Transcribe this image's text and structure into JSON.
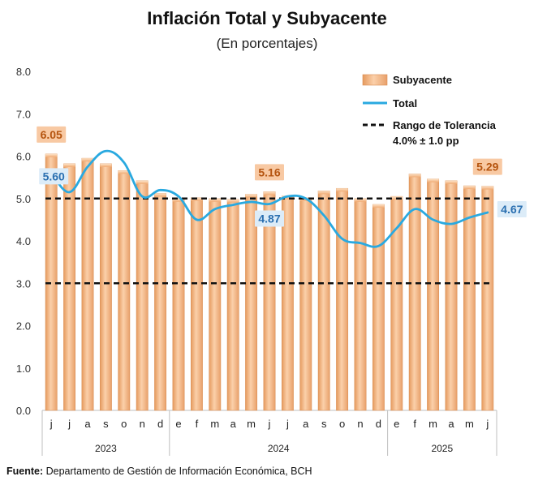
{
  "title": "Inflación Total y Subyacente",
  "subtitle": "(En porcentajes)",
  "source": {
    "label": "Fuente:",
    "text": "Departamento de Gestión de Información Económica, BCH"
  },
  "colors": {
    "bar": "#f3b482",
    "bar_edge": "#d98c50",
    "line": "#29a9e0",
    "band": "#111111",
    "callout_sub_bg": "#f8c9a3",
    "callout_sub_text": "#b5540f",
    "callout_total_bg": "#dcecf8",
    "callout_total_text": "#2a6fb0"
  },
  "chart_data": {
    "type": "bar",
    "ylim": [
      0,
      8
    ],
    "yticks": [
      "0.0",
      "1.0",
      "2.0",
      "3.0",
      "4.0",
      "5.0",
      "6.0",
      "7.0",
      "8.0"
    ],
    "categories": [
      "j",
      "j",
      "a",
      "s",
      "o",
      "n",
      "d",
      "e",
      "f",
      "m",
      "a",
      "m",
      "j",
      "j",
      "a",
      "s",
      "o",
      "n",
      "d",
      "e",
      "f",
      "m",
      "a",
      "m",
      "j"
    ],
    "years": [
      {
        "label": "2023",
        "start": 0,
        "end": 6
      },
      {
        "label": "2024",
        "start": 7,
        "end": 18
      },
      {
        "label": "2025",
        "start": 19,
        "end": 24
      }
    ],
    "series": [
      {
        "name": "Subyacente",
        "type": "bar",
        "values": [
          6.05,
          5.82,
          5.95,
          5.82,
          5.66,
          5.42,
          5.12,
          5.0,
          5.02,
          5.0,
          4.98,
          5.1,
          5.16,
          5.06,
          5.02,
          5.18,
          5.24,
          5.0,
          4.86,
          5.05,
          5.58,
          5.46,
          5.42,
          5.3,
          5.29
        ]
      },
      {
        "name": "Total",
        "type": "line",
        "values": [
          5.6,
          5.15,
          5.75,
          6.12,
          5.85,
          5.05,
          5.2,
          5.05,
          4.5,
          4.75,
          4.85,
          4.92,
          4.87,
          5.05,
          5.0,
          4.6,
          4.05,
          3.95,
          3.88,
          4.3,
          4.75,
          4.5,
          4.4,
          4.55,
          4.67
        ]
      }
    ],
    "tolerance": {
      "name": "Rango de Tolerancia",
      "label_line2": "4.0% ± 1.0 pp",
      "upper": 5.0,
      "lower": 3.0
    },
    "callouts": [
      {
        "text": "6.05",
        "series": "Subyacente",
        "index": 0,
        "value": 6.05
      },
      {
        "text": "5.60",
        "series": "Total",
        "index": 0,
        "value": 5.6
      },
      {
        "text": "5.16",
        "series": "Subyacente",
        "index": 12,
        "value": 5.16
      },
      {
        "text": "4.87",
        "series": "Total",
        "index": 12,
        "value": 4.87
      },
      {
        "text": "5.29",
        "series": "Subyacente",
        "index": 24,
        "value": 5.29
      },
      {
        "text": "4.67",
        "series": "Total",
        "index": 24,
        "value": 4.67
      }
    ],
    "legend_position": "top-right"
  }
}
